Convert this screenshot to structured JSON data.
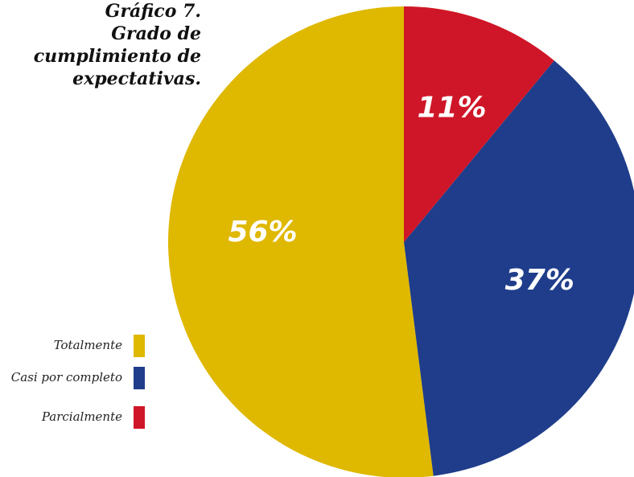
{
  "chart_data": {
    "type": "pie",
    "title": "Gráfico 7.",
    "subtitle": "Grado de cumplimiento de expectativas.",
    "categories": [
      "Totalmente",
      "Casi por completo",
      "Parcialmente"
    ],
    "values": [
      56,
      37,
      11
    ],
    "value_labels": [
      "56%",
      "37%",
      "11%"
    ],
    "colors": [
      "#dfb800",
      "#1f3d8a",
      "#cf1628"
    ],
    "legend": "left"
  }
}
